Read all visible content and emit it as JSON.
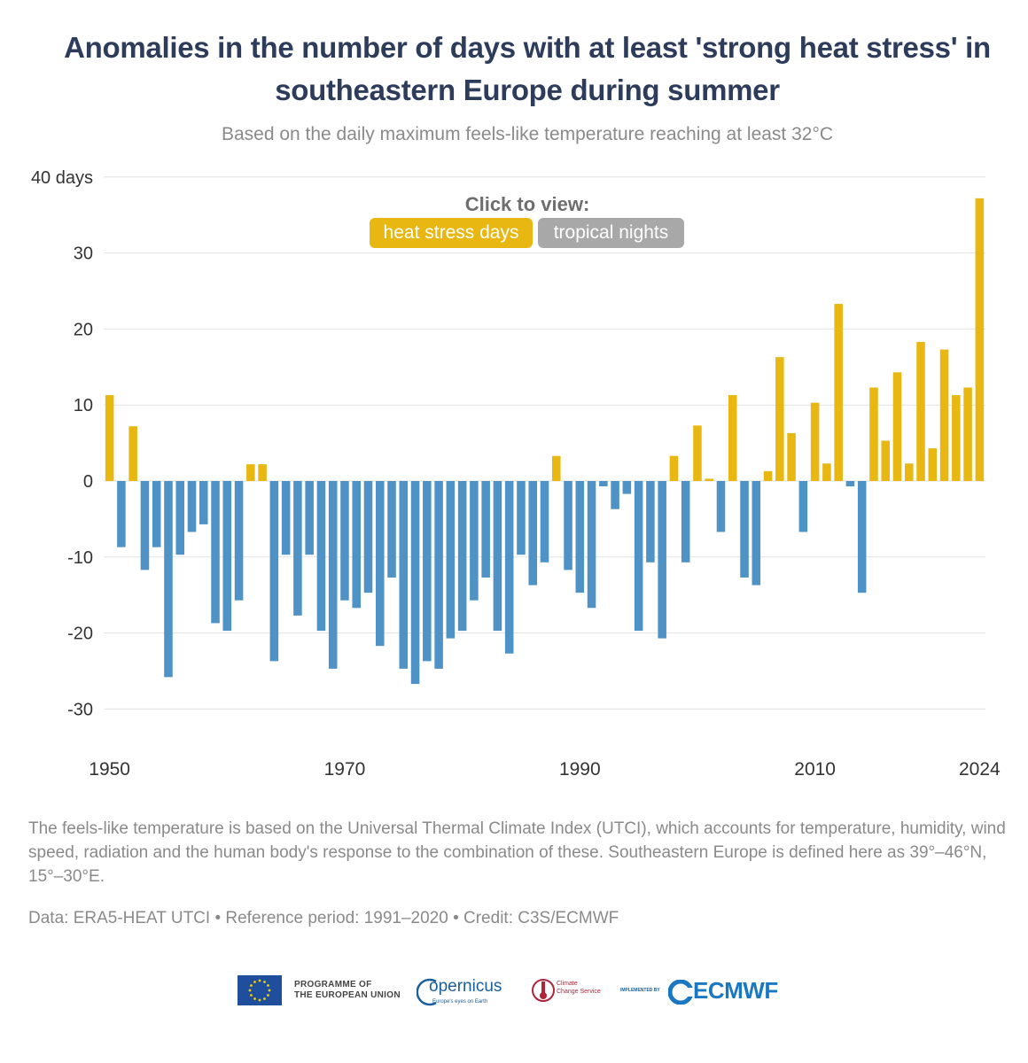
{
  "title": "Anomalies in the number of days with at least 'strong heat stress' in southeastern Europe during summer",
  "subtitle": "Based on the daily maximum feels-like temperature reaching at least 32°C",
  "toggle": {
    "label": "Click to view:",
    "options": [
      "heat stress days",
      "tropical nights"
    ],
    "active": "heat stress days"
  },
  "colors": {
    "positive": "#e8b712",
    "negative": "#4f93c6",
    "toggle_active": "#e8b712",
    "toggle_inactive": "#a8a8a8",
    "gridline": "#e2e2e2",
    "title": "#2e3c5c"
  },
  "chart_data": {
    "type": "bar",
    "title": "Anomalies in the number of days with at least 'strong heat stress' in southeastern Europe during summer",
    "subtitle": "Based on the daily maximum feels-like temperature reaching at least 32°C",
    "xlabel": "",
    "ylabel": "",
    "y_unit_label": "40 days",
    "ylim": [
      -32,
      40
    ],
    "yticks": [
      40,
      30,
      20,
      10,
      0,
      -10,
      -20,
      -30
    ],
    "ytick_labels": [
      "40 days",
      "30",
      "20",
      "10",
      "0",
      "-10",
      "-20",
      "-30"
    ],
    "xticks": [
      1950,
      1970,
      1990,
      2010,
      2024
    ],
    "grid": true,
    "legend": "none",
    "x": [
      1950,
      1951,
      1952,
      1953,
      1954,
      1955,
      1956,
      1957,
      1958,
      1959,
      1960,
      1961,
      1962,
      1963,
      1964,
      1965,
      1966,
      1967,
      1968,
      1969,
      1970,
      1971,
      1972,
      1973,
      1974,
      1975,
      1976,
      1977,
      1978,
      1979,
      1980,
      1981,
      1982,
      1983,
      1984,
      1985,
      1986,
      1987,
      1988,
      1989,
      1990,
      1991,
      1992,
      1993,
      1994,
      1995,
      1996,
      1997,
      1998,
      1999,
      2000,
      2001,
      2002,
      2003,
      2004,
      2005,
      2006,
      2007,
      2008,
      2009,
      2010,
      2011,
      2012,
      2013,
      2014,
      2015,
      2016,
      2017,
      2018,
      2019,
      2020,
      2021,
      2022,
      2023,
      2024
    ],
    "values": [
      11.3,
      -8.7,
      7.2,
      -11.7,
      -8.7,
      -25.8,
      -9.7,
      -6.7,
      -5.7,
      -18.7,
      -19.7,
      -15.7,
      2.2,
      2.2,
      -23.7,
      -9.7,
      -17.7,
      -9.7,
      -19.7,
      -24.7,
      -15.7,
      -16.7,
      -14.7,
      -21.7,
      -12.7,
      -24.7,
      -26.7,
      -23.7,
      -24.7,
      -20.7,
      -19.7,
      -15.7,
      -12.7,
      -19.7,
      -22.7,
      -9.7,
      -13.7,
      -10.7,
      3.3,
      -11.7,
      -14.7,
      -16.7,
      -0.7,
      -3.7,
      -1.7,
      -19.7,
      -10.7,
      -20.7,
      3.3,
      -10.7,
      7.3,
      0.3,
      -6.7,
      11.3,
      -12.7,
      -13.7,
      1.3,
      16.3,
      6.3,
      -6.7,
      10.3,
      2.3,
      23.3,
      -0.7,
      -14.7,
      12.3,
      5.3,
      14.3,
      2.3,
      18.3,
      4.3,
      17.3,
      11.3,
      12.3,
      37.2
    ]
  },
  "note": "The feels-like temperature is based on the Universal Thermal Climate Index (UTCI), which accounts for temperature, humidity, wind speed, radiation and the human body's response to the combination of these. Southeastern Europe is defined here as 39°–46°N, 15°–30°E.",
  "source": "Data: ERA5-HEAT UTCI • Reference period: 1991–2020 • Credit: C3S/ECMWF",
  "logos": {
    "eu_text_line1": "PROGRAMME OF",
    "eu_text_line2": "THE EUROPEAN UNION",
    "copernicus": "opernicus",
    "copernicus_tagline": "Europe's eyes on Earth",
    "c3s_line1": "Climate",
    "c3s_line2": "Change Service",
    "ecmwf_implemented": "IMPLEMENTED BY",
    "ecmwf": "ECMWF"
  }
}
